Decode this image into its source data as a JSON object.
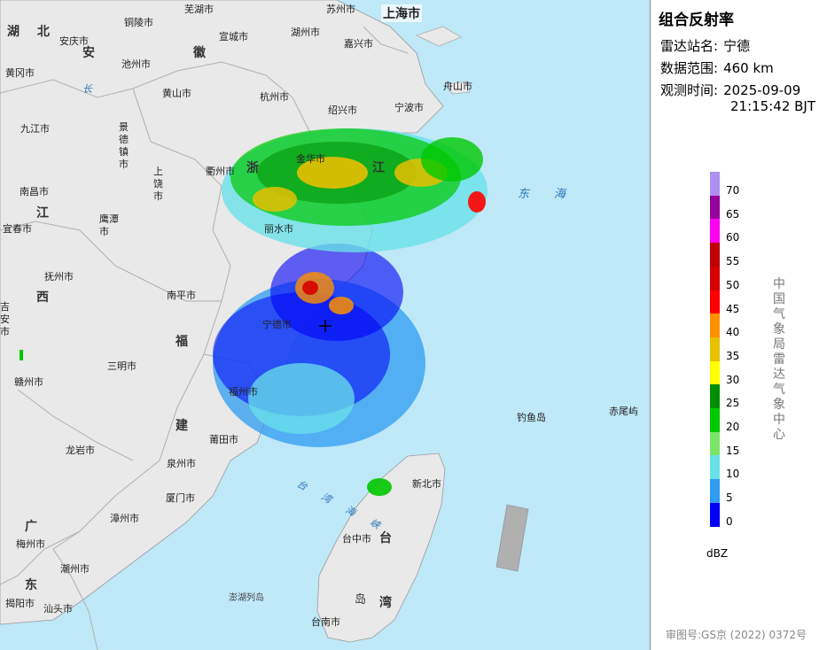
{
  "product": {
    "title": "组合反射率",
    "station_label": "雷达站名:",
    "station_value": "宁德",
    "range_label": "数据范围:",
    "range_value": "460 km",
    "time_label": "观测时间:",
    "time_date": "2025-09-09",
    "time_clock": "21:15:42 BJT"
  },
  "legend": {
    "unit": "dBZ",
    "levels": [
      {
        "value": "70",
        "color": "#ad90f0"
      },
      {
        "value": "65",
        "color": "#96009b"
      },
      {
        "value": "60",
        "color": "#ff00f0"
      },
      {
        "value": "55",
        "color": "#c00000"
      },
      {
        "value": "50",
        "color": "#d60000"
      },
      {
        "value": "45",
        "color": "#ff0000"
      },
      {
        "value": "40",
        "color": "#ff9000"
      },
      {
        "value": "35",
        "color": "#e7c000"
      },
      {
        "value": "30",
        "color": "#ffff00"
      },
      {
        "value": "25",
        "color": "#008e00"
      },
      {
        "value": "20",
        "color": "#00c800"
      },
      {
        "value": "15",
        "color": "#7ae46a"
      },
      {
        "value": "10",
        "color": "#69e1e9"
      },
      {
        "value": "5",
        "color": "#2d9cf2"
      },
      {
        "value": "0",
        "color": "#0000f6"
      }
    ]
  },
  "agency": "中国气象局雷达气象中心",
  "approval": {
    "label": "审图号:",
    "value": "GS京 (2022) 0372号"
  },
  "map": {
    "big_cities": [
      {
        "name": "上海市"
      }
    ],
    "cities": [
      {
        "name": "芜湖市"
      },
      {
        "name": "苏州市"
      },
      {
        "name": "铜陵市"
      },
      {
        "name": "宣城市"
      },
      {
        "name": "湖州市"
      },
      {
        "name": "嘉兴市"
      },
      {
        "name": "安庆市"
      },
      {
        "name": "池州市"
      },
      {
        "name": "黄冈市"
      },
      {
        "name": "黄山市"
      },
      {
        "name": "杭州市"
      },
      {
        "name": "舟山市"
      },
      {
        "name": "绍兴市"
      },
      {
        "name": "宁波市"
      },
      {
        "name": "九江市"
      },
      {
        "name": "景德镇市"
      },
      {
        "name": "衢州市"
      },
      {
        "name": "金华市"
      },
      {
        "name": "上饶市"
      },
      {
        "name": "南昌市"
      },
      {
        "name": "鹰潭市"
      },
      {
        "name": "宜春市"
      },
      {
        "name": "丽水市"
      },
      {
        "name": "抚州市"
      },
      {
        "name": "南平市"
      },
      {
        "name": "宁德市"
      },
      {
        "name": "三明市"
      },
      {
        "name": "赣州市"
      },
      {
        "name": "福州市"
      },
      {
        "name": "莆田市"
      },
      {
        "name": "龙岩市"
      },
      {
        "name": "泉州市"
      },
      {
        "name": "厦门市"
      },
      {
        "name": "漳州市"
      },
      {
        "name": "梅州市"
      },
      {
        "name": "潮州市"
      },
      {
        "name": "揭阳市"
      },
      {
        "name": "汕头市"
      },
      {
        "name": "新北市"
      },
      {
        "name": "台中市"
      },
      {
        "name": "台南市"
      },
      {
        "name": "吉安市"
      }
    ],
    "islands": [
      {
        "name": "钓鱼岛"
      },
      {
        "name": "赤尾屿"
      },
      {
        "name": "澎湖列岛"
      }
    ],
    "provinces": [
      {
        "name": "湖"
      },
      {
        "name": "北"
      },
      {
        "name": "安"
      },
      {
        "name": "徽"
      },
      {
        "name": "浙"
      },
      {
        "name": "江"
      },
      {
        "name": "江"
      },
      {
        "name": "西"
      },
      {
        "name": "福"
      },
      {
        "name": "建"
      },
      {
        "name": "广"
      },
      {
        "name": "东"
      },
      {
        "name": "台"
      },
      {
        "name": "湾"
      },
      {
        "name": "岛"
      }
    ],
    "seas": [
      {
        "name": "东海"
      },
      {
        "name": "台湾海峡"
      },
      {
        "name": "长"
      }
    ]
  }
}
